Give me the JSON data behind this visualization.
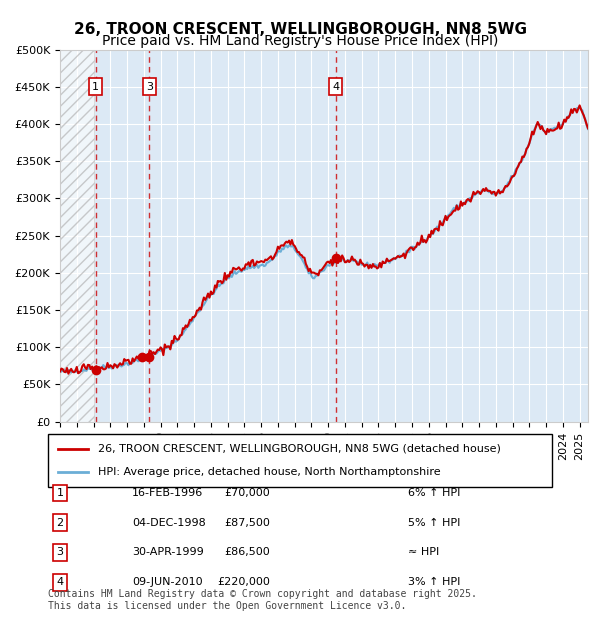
{
  "title_line1": "26, TROON CRESCENT, WELLINGBOROUGH, NN8 5WG",
  "title_line2": "Price paid vs. HM Land Registry's House Price Index (HPI)",
  "xlabel": "",
  "ylabel": "",
  "ylim": [
    0,
    500000
  ],
  "yticks": [
    0,
    50000,
    100000,
    150000,
    200000,
    250000,
    300000,
    350000,
    400000,
    450000,
    500000
  ],
  "ytick_labels": [
    "£0",
    "£50K",
    "£100K",
    "£150K",
    "£200K",
    "£250K",
    "£300K",
    "£350K",
    "£400K",
    "£450K",
    "£500K"
  ],
  "xlim_start": 1994.0,
  "xlim_end": 2025.5,
  "hpi_color": "#6baed6",
  "price_color": "#cc0000",
  "background_color": "#dce9f5",
  "hatch_region_end": 1996.0,
  "transactions": [
    {
      "num": 1,
      "date": "16-FEB-1996",
      "year": 1996.12,
      "price": 70000,
      "label": "6% ↑ HPI"
    },
    {
      "num": 2,
      "date": "04-DEC-1998",
      "year": 1998.92,
      "price": 87500,
      "label": "5% ↑ HPI"
    },
    {
      "num": 3,
      "date": "30-APR-1999",
      "year": 1999.33,
      "price": 86500,
      "label": "≈ HPI"
    },
    {
      "num": 4,
      "date": "09-JUN-2010",
      "year": 2010.44,
      "price": 220000,
      "label": "3% ↑ HPI"
    }
  ],
  "legend_line1": "26, TROON CRESCENT, WELLINGBOROUGH, NN8 5WG (detached house)",
  "legend_line2": "HPI: Average price, detached house, North Northamptonshire",
  "footer": "Contains HM Land Registry data © Crown copyright and database right 2025.\nThis data is licensed under the Open Government Licence v3.0.",
  "title_fontsize": 11,
  "subtitle_fontsize": 10,
  "tick_fontsize": 8,
  "annotation_fontsize": 8
}
